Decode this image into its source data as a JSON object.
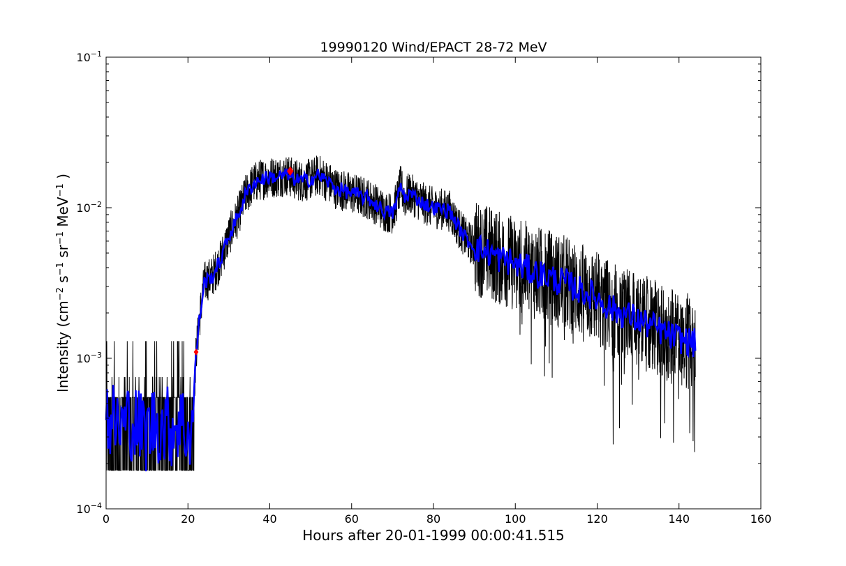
{
  "chart_data": {
    "type": "line",
    "title": "19990120 Wind/EPACT 28-72 MeV",
    "xlabel": "Hours after 20-01-1999 00:00:41.515",
    "ylabel_main": "Intensity (cm",
    "ylabel_parts": [
      {
        "text": "Intensity (cm",
        "sup": false
      },
      {
        "text": "−2",
        "sup": true
      },
      {
        "text": " s",
        "sup": false
      },
      {
        "text": "−1",
        "sup": true
      },
      {
        "text": " sr",
        "sup": false
      },
      {
        "text": "−1",
        "sup": true
      },
      {
        "text": " MeV",
        "sup": false
      },
      {
        "text": "−1",
        "sup": true
      },
      {
        "text": " )",
        "sup": false
      }
    ],
    "xlim": [
      0,
      160
    ],
    "ylim": [
      0.0001,
      0.1
    ],
    "yscale": "log",
    "grid": false,
    "xticks": [
      0,
      20,
      40,
      60,
      80,
      100,
      120,
      140,
      160
    ],
    "xtick_labels": [
      "0",
      "20",
      "40",
      "60",
      "80",
      "100",
      "120",
      "140",
      "160"
    ],
    "yticks": [
      {
        "value": 0.0001,
        "base": "10",
        "exp": "−4"
      },
      {
        "value": 0.001,
        "base": "10",
        "exp": "−3"
      },
      {
        "value": 0.01,
        "base": "10",
        "exp": "−2"
      },
      {
        "value": 0.1,
        "base": "10",
        "exp": "−1"
      }
    ],
    "series": [
      {
        "color": "#000000",
        "style": "raw-noisy",
        "x": [
          0,
          2,
          4,
          6,
          8,
          10,
          12,
          14,
          16,
          18,
          20,
          21,
          21.5,
          22,
          23,
          24,
          26,
          28,
          30,
          32,
          34,
          36,
          38,
          40,
          42,
          44,
          46,
          48,
          50,
          52,
          54,
          56,
          58,
          60,
          62,
          64,
          66,
          68,
          70,
          71,
          72,
          73,
          74,
          76,
          78,
          80,
          82,
          84,
          86,
          88,
          90,
          92,
          94,
          96,
          98,
          100,
          102,
          104,
          106,
          108,
          110,
          112,
          114,
          116,
          118,
          120,
          122,
          124,
          126,
          128,
          130,
          132,
          134,
          136,
          138,
          140,
          142,
          144
        ],
        "y": [
          0.00042,
          0.00037,
          0.00035,
          0.0004,
          0.00034,
          0.00032,
          0.00038,
          0.00036,
          0.00035,
          0.00039,
          0.00032,
          0.00035,
          0.0006,
          0.0011,
          0.002,
          0.0032,
          0.0035,
          0.0045,
          0.0065,
          0.0085,
          0.012,
          0.0145,
          0.0155,
          0.016,
          0.016,
          0.0165,
          0.0155,
          0.015,
          0.0155,
          0.0165,
          0.015,
          0.0135,
          0.013,
          0.0125,
          0.012,
          0.0115,
          0.0105,
          0.0095,
          0.0092,
          0.011,
          0.014,
          0.0115,
          0.0125,
          0.0115,
          0.0105,
          0.01,
          0.0098,
          0.0095,
          0.0075,
          0.0062,
          0.0055,
          0.0052,
          0.005,
          0.0046,
          0.0045,
          0.0042,
          0.004,
          0.0038,
          0.0036,
          0.0035,
          0.0033,
          0.0032,
          0.003,
          0.0028,
          0.0027,
          0.0025,
          0.0023,
          0.0021,
          0.002,
          0.0019,
          0.0018,
          0.0017,
          0.0016,
          0.0015,
          0.0014,
          0.00135,
          0.0013,
          0.00125
        ]
      },
      {
        "color": "#0000ff",
        "style": "smoothed",
        "x": [
          0,
          2,
          4,
          6,
          8,
          10,
          12,
          14,
          16,
          18,
          20,
          21,
          21.5,
          22,
          23,
          24,
          26,
          28,
          30,
          32,
          34,
          36,
          38,
          40,
          42,
          44,
          46,
          48,
          50,
          52,
          54,
          56,
          58,
          60,
          62,
          64,
          66,
          68,
          70,
          71,
          72,
          73,
          74,
          76,
          78,
          80,
          82,
          84,
          86,
          88,
          90,
          92,
          94,
          96,
          98,
          100,
          102,
          104,
          106,
          108,
          110,
          112,
          114,
          116,
          118,
          120,
          122,
          124,
          126,
          128,
          130,
          132,
          134,
          136,
          138,
          140,
          142,
          144
        ],
        "y": [
          0.00042,
          0.00037,
          0.00035,
          0.0004,
          0.00034,
          0.00032,
          0.00038,
          0.00036,
          0.00035,
          0.00039,
          0.00032,
          0.00035,
          0.0006,
          0.0011,
          0.002,
          0.0032,
          0.0035,
          0.0045,
          0.0065,
          0.0085,
          0.012,
          0.0145,
          0.0155,
          0.016,
          0.016,
          0.0165,
          0.0155,
          0.015,
          0.0155,
          0.0165,
          0.015,
          0.0135,
          0.013,
          0.0125,
          0.012,
          0.0115,
          0.0105,
          0.0095,
          0.0092,
          0.011,
          0.014,
          0.0115,
          0.0125,
          0.0115,
          0.0105,
          0.01,
          0.0098,
          0.0095,
          0.0075,
          0.0062,
          0.0055,
          0.0052,
          0.005,
          0.0046,
          0.0045,
          0.0042,
          0.004,
          0.0038,
          0.0036,
          0.0035,
          0.0033,
          0.0032,
          0.003,
          0.0028,
          0.0027,
          0.0025,
          0.0023,
          0.0021,
          0.002,
          0.0019,
          0.0018,
          0.0017,
          0.0016,
          0.0015,
          0.0014,
          0.00135,
          0.0013,
          0.00125
        ]
      }
    ],
    "markers": [
      {
        "x": 22,
        "y": 0.0011,
        "color": "#ff0000"
      },
      {
        "x": 45,
        "y": 0.0175,
        "color": "#ff0000"
      }
    ]
  }
}
